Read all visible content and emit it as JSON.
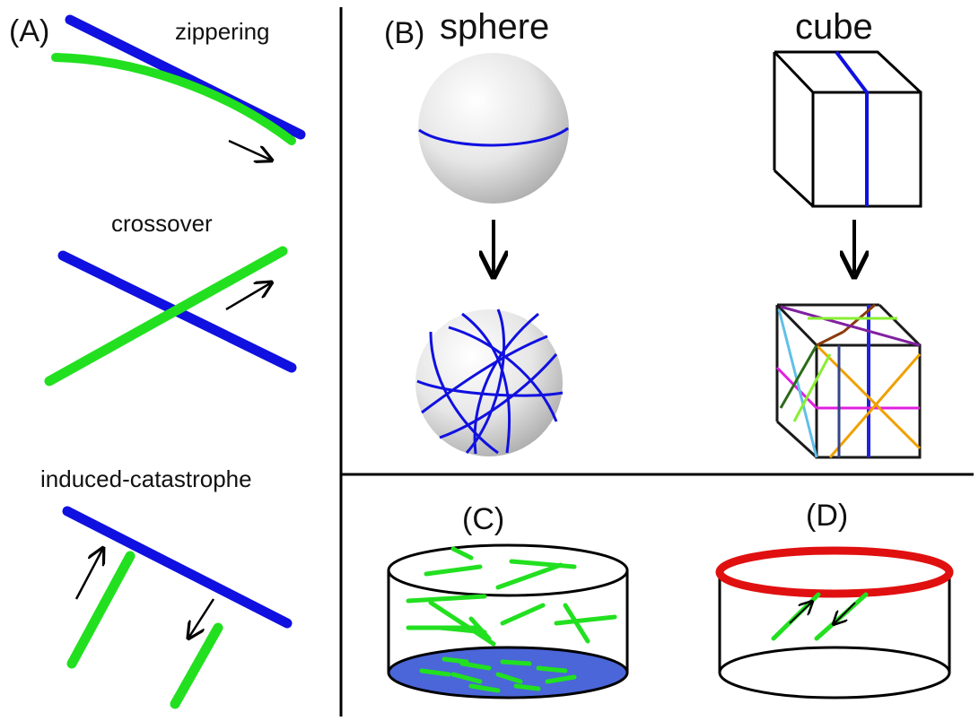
{
  "panels": {
    "a": {
      "label": "(A)",
      "zippering": "zippering",
      "crossover": "crossover",
      "induced": "induced-catastrophe"
    },
    "b": {
      "label": "(B)",
      "sphere": "sphere",
      "cube": "cube"
    },
    "c": {
      "label": "(C)"
    },
    "d": {
      "label": "(D)"
    }
  },
  "colors": {
    "microtubule_blue": "#1010e0",
    "microtubule_green": "#22e020",
    "ring_red": "#e01010",
    "base_fill": "#4a66d8",
    "sphere_shade": "#cfcfcf",
    "outline": "#000000"
  }
}
